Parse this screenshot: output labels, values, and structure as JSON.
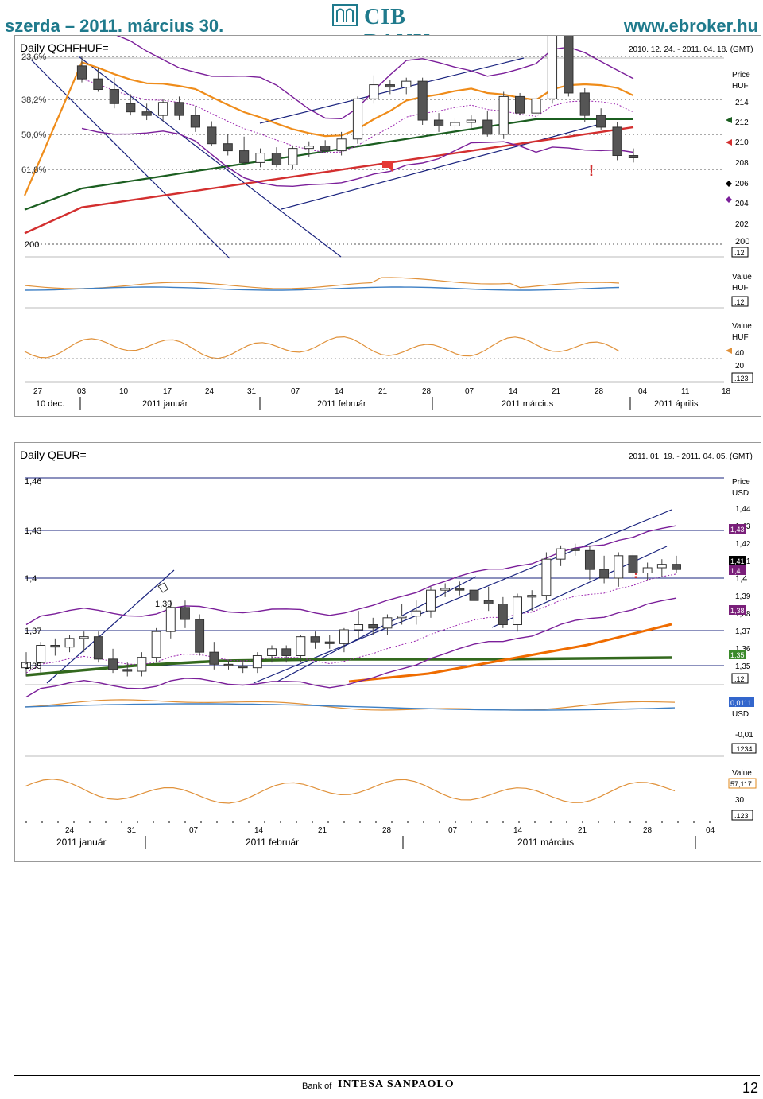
{
  "header": {
    "date_text": "szerda – 2011. március 30.",
    "logo_text": "CIB BANK",
    "url": "www.ebroker.hu"
  },
  "chart1": {
    "title": "Daily QCHFHUF=",
    "date_range": "2010. 12. 24. - 2011. 04. 18. (GMT)",
    "fib_labels": [
      "23,6%",
      "38,2%",
      "50,0%",
      "61,8%"
    ],
    "left_level": "200",
    "price_axis": {
      "unit1": "Price",
      "unit2": "HUF",
      "ticks": [
        "214",
        "212",
        "210",
        "208",
        "206",
        "204",
        "202",
        "200"
      ],
      "cursor": ".12"
    },
    "ind1_axis": {
      "unit1": "Value",
      "unit2": "HUF",
      "cursor": ".12"
    },
    "ind2_axis": {
      "unit1": "Value",
      "unit2": "HUF",
      "ticks": [
        "40",
        "20"
      ],
      "cursor": ".123"
    },
    "day_ticks": [
      "27",
      "03",
      "10",
      "17",
      "24",
      "31",
      "07",
      "14",
      "21",
      "28",
      "07",
      "14",
      "21",
      "28",
      "04",
      "11",
      "18"
    ],
    "months": [
      "10 dec.",
      "2011 január",
      "2011 február",
      "2011 március",
      "2011 április"
    ]
  },
  "chart2": {
    "title": "Daily QEUR=",
    "date_range": "2011. 01. 19. - 2011. 04. 05. (GMT)",
    "left_levels": [
      "1,46",
      "1,43",
      "1,4",
      "1,37",
      "1,35"
    ],
    "annot": "1,39",
    "price_axis": {
      "unit1": "Price",
      "unit2": "USD",
      "ticks": [
        "1,44",
        "1,43",
        "1,42",
        "1,41",
        "1,4",
        "1,39",
        "1,38",
        "1,37",
        "1,36",
        "1,35"
      ],
      "cursor": ".12"
    },
    "tags": [
      {
        "text": "1,43",
        "color": "#7a1f7a"
      },
      {
        "text": "1,41",
        "color": "#000000"
      },
      {
        "text": "1,4",
        "color": "#7a1f7a"
      },
      {
        "text": "1,38",
        "color": "#7a1f7a"
      },
      {
        "text": "1,35",
        "color": "#3a8a2a"
      }
    ],
    "ind1_axis": {
      "tag": "0,0111",
      "unit2": "USD",
      "tick": "-0,01",
      "cursor": ".1234"
    },
    "ind2_axis": {
      "unit1": "Value",
      "tag": "57,117",
      "tick": "30",
      "cursor": ".123"
    },
    "day_ticks": [
      "24",
      "31",
      "07",
      "14",
      "21",
      "28",
      "07",
      "14",
      "21",
      "28",
      "04"
    ],
    "months": [
      "2011 január",
      "2011 február",
      "2011 március"
    ]
  },
  "chart_data": [
    {
      "type": "candlestick",
      "title": "Daily QCHFHUF=",
      "ylabel": "HUF",
      "ylim": [
        199,
        216
      ],
      "ohlc": [
        [
          215.2,
          216.0,
          213.8,
          214.1
        ],
        [
          214.1,
          215.0,
          213.0,
          213.2
        ],
        [
          213.2,
          214.2,
          211.6,
          212.0
        ],
        [
          212.0,
          212.8,
          211.0,
          211.3
        ],
        [
          211.3,
          212.0,
          210.6,
          211.0
        ],
        [
          211.0,
          212.4,
          210.5,
          212.1
        ],
        [
          212.1,
          212.6,
          210.6,
          211.0
        ],
        [
          211.0,
          211.8,
          209.6,
          210.0
        ],
        [
          210.0,
          210.5,
          208.4,
          208.6
        ],
        [
          208.6,
          209.4,
          207.6,
          208.0
        ],
        [
          208.0,
          209.2,
          206.8,
          207.0
        ],
        [
          207.0,
          208.2,
          206.6,
          207.8
        ],
        [
          207.8,
          208.3,
          206.6,
          206.8
        ],
        [
          206.8,
          208.4,
          206.4,
          208.2
        ],
        [
          208.2,
          208.8,
          207.5,
          208.4
        ],
        [
          208.4,
          208.9,
          207.8,
          208.0
        ],
        [
          208.0,
          209.6,
          207.6,
          209.0
        ],
        [
          209.0,
          212.6,
          208.6,
          212.4
        ],
        [
          212.4,
          214.4,
          212.0,
          213.6
        ],
        [
          213.6,
          214.0,
          212.8,
          213.4
        ],
        [
          213.4,
          214.2,
          212.8,
          213.9
        ],
        [
          213.9,
          214.2,
          210.2,
          210.6
        ],
        [
          210.6,
          211.2,
          209.6,
          210.1
        ],
        [
          210.1,
          210.8,
          209.4,
          210.4
        ],
        [
          210.4,
          211.0,
          209.8,
          210.6
        ],
        [
          210.6,
          211.4,
          209.2,
          209.4
        ],
        [
          209.4,
          213.0,
          209.0,
          212.6
        ],
        [
          212.6,
          212.9,
          211.0,
          211.2
        ],
        [
          211.2,
          212.8,
          210.6,
          212.4
        ],
        [
          212.4,
          219.5,
          212.0,
          217.8
        ],
        [
          217.8,
          218.0,
          212.6,
          212.9
        ],
        [
          212.9,
          213.3,
          210.4,
          211.0
        ],
        [
          211.0,
          211.6,
          209.8,
          210.0
        ],
        [
          210.0,
          210.4,
          207.2,
          207.6
        ],
        [
          207.6,
          208.2,
          207.0,
          207.4
        ]
      ]
    },
    {
      "type": "candlestick",
      "title": "Daily QEUR=",
      "ylabel": "USD",
      "ylim": [
        1.345,
        1.465
      ],
      "ohlc": [
        [
          1.353,
          1.362,
          1.348,
          1.356
        ],
        [
          1.356,
          1.368,
          1.35,
          1.366
        ],
        [
          1.366,
          1.37,
          1.36,
          1.365
        ],
        [
          1.365,
          1.372,
          1.362,
          1.37
        ],
        [
          1.37,
          1.374,
          1.362,
          1.371
        ],
        [
          1.371,
          1.374,
          1.356,
          1.358
        ],
        [
          1.358,
          1.364,
          1.35,
          1.352
        ],
        [
          1.352,
          1.356,
          1.348,
          1.351
        ],
        [
          1.351,
          1.362,
          1.348,
          1.359
        ],
        [
          1.359,
          1.376,
          1.356,
          1.374
        ],
        [
          1.374,
          1.392,
          1.37,
          1.388
        ],
        [
          1.388,
          1.392,
          1.376,
          1.381
        ],
        [
          1.381,
          1.384,
          1.36,
          1.362
        ],
        [
          1.362,
          1.368,
          1.352,
          1.355
        ],
        [
          1.355,
          1.357,
          1.352,
          1.354
        ],
        [
          1.354,
          1.356,
          1.35,
          1.353
        ],
        [
          1.353,
          1.362,
          1.35,
          1.36
        ],
        [
          1.36,
          1.366,
          1.356,
          1.364
        ],
        [
          1.364,
          1.366,
          1.356,
          1.36
        ],
        [
          1.36,
          1.372,
          1.356,
          1.371
        ],
        [
          1.371,
          1.374,
          1.364,
          1.368
        ],
        [
          1.368,
          1.372,
          1.364,
          1.367
        ],
        [
          1.367,
          1.376,
          1.362,
          1.375
        ],
        [
          1.375,
          1.386,
          1.37,
          1.378
        ],
        [
          1.378,
          1.382,
          1.372,
          1.376
        ],
        [
          1.376,
          1.384,
          1.372,
          1.382
        ],
        [
          1.382,
          1.39,
          1.378,
          1.383
        ],
        [
          1.383,
          1.392,
          1.378,
          1.386
        ],
        [
          1.386,
          1.4,
          1.382,
          1.398
        ],
        [
          1.398,
          1.402,
          1.394,
          1.399
        ],
        [
          1.399,
          1.403,
          1.395,
          1.398
        ],
        [
          1.398,
          1.404,
          1.388,
          1.392
        ],
        [
          1.392,
          1.4,
          1.386,
          1.39
        ],
        [
          1.39,
          1.394,
          1.376,
          1.378
        ],
        [
          1.378,
          1.396,
          1.374,
          1.394
        ],
        [
          1.394,
          1.398,
          1.386,
          1.395
        ],
        [
          1.395,
          1.42,
          1.392,
          1.416
        ],
        [
          1.416,
          1.424,
          1.412,
          1.422
        ],
        [
          1.422,
          1.425,
          1.418,
          1.421
        ],
        [
          1.421,
          1.424,
          1.404,
          1.41
        ],
        [
          1.41,
          1.418,
          1.402,
          1.405
        ],
        [
          1.405,
          1.42,
          1.4,
          1.418
        ],
        [
          1.418,
          1.42,
          1.404,
          1.408
        ],
        [
          1.408,
          1.414,
          1.404,
          1.411
        ],
        [
          1.411,
          1.416,
          1.406,
          1.413
        ],
        [
          1.413,
          1.418,
          1.408,
          1.41
        ]
      ]
    }
  ]
}
